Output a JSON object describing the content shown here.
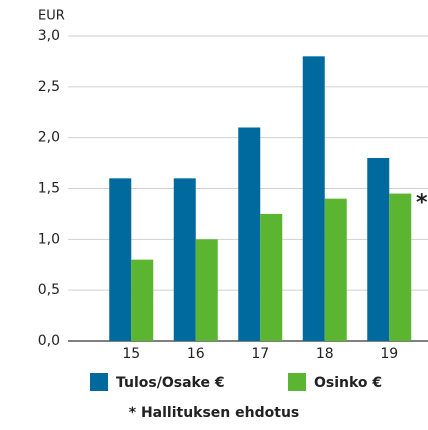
{
  "chart_data": {
    "type": "bar",
    "y_label": "EUR",
    "categories": [
      "15",
      "16",
      "17",
      "18",
      "19"
    ],
    "series": [
      {
        "name": "Tulos/Osake €",
        "color": "#006a9e",
        "values": [
          1.6,
          1.6,
          2.1,
          2.8,
          1.8
        ]
      },
      {
        "name": "Osinko €",
        "color": "#5cb531",
        "values": [
          0.8,
          1.0,
          1.25,
          1.4,
          1.45
        ]
      }
    ],
    "ylim": [
      0,
      3
    ],
    "yticks": [
      {
        "value": 0,
        "label": "0,0"
      },
      {
        "value": 0.5,
        "label": "0,5"
      },
      {
        "value": 1,
        "label": "1,0"
      },
      {
        "value": 1.5,
        "label": "1,5"
      },
      {
        "value": 2,
        "label": "2,0"
      },
      {
        "value": 2.5,
        "label": "2,5"
      },
      {
        "value": 3,
        "label": "3,0"
      }
    ],
    "grid": true,
    "annotation": "*",
    "footnote": "* Hallituksen ehdotus"
  }
}
